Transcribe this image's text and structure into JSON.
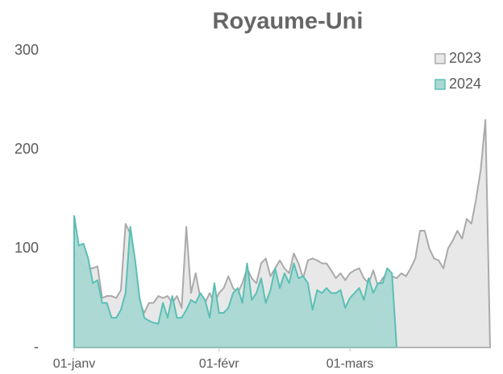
{
  "chart_data": {
    "type": "area",
    "title": "Royaume-Uni",
    "categories": [
      "01-janv",
      null,
      null,
      null,
      null,
      null,
      null,
      null,
      null,
      null,
      null,
      null,
      null,
      null,
      null,
      null,
      null,
      null,
      null,
      null,
      null,
      null,
      null,
      null,
      null,
      null,
      null,
      null,
      null,
      null,
      null,
      "01-févr",
      null,
      null,
      null,
      null,
      null,
      null,
      null,
      null,
      null,
      null,
      null,
      null,
      null,
      null,
      null,
      null,
      null,
      null,
      null,
      null,
      null,
      null,
      null,
      null,
      null,
      null,
      null,
      "01-mars",
      null,
      null,
      null,
      null,
      null,
      null,
      null,
      null,
      null,
      null,
      null,
      null,
      null,
      null,
      null,
      null,
      null,
      null,
      null,
      null,
      null,
      null,
      null,
      null,
      null,
      null,
      null,
      null,
      null,
      null
    ],
    "series": [
      {
        "name": "2023",
        "color": "#aaaaaa",
        "fill": "#e8e8e8",
        "values": [
          100,
          88,
          82,
          80,
          80,
          82,
          50,
          52,
          52,
          50,
          58,
          125,
          115,
          65,
          45,
          35,
          45,
          45,
          52,
          50,
          52,
          45,
          52,
          40,
          122,
          55,
          75,
          50,
          45,
          55,
          45,
          55,
          60,
          72,
          60,
          55,
          65,
          80,
          70,
          65,
          85,
          90,
          72,
          80,
          88,
          80,
          75,
          95,
          85,
          70,
          88,
          90,
          88,
          85,
          85,
          78,
          70,
          75,
          68,
          75,
          78,
          80,
          70,
          65,
          78,
          62,
          70,
          75,
          72,
          70,
          75,
          72,
          80,
          90,
          118,
          118,
          100,
          90,
          88,
          80,
          100,
          108,
          118,
          110,
          130,
          125,
          150,
          180,
          230,
          0
        ]
      },
      {
        "name": "2024",
        "color": "#5bbfb5",
        "fill": "#a9d8d3",
        "values": [
          133,
          103,
          105,
          90,
          65,
          68,
          45,
          45,
          30,
          30,
          38,
          55,
          122,
          90,
          50,
          30,
          27,
          25,
          24,
          45,
          30,
          52,
          30,
          30,
          38,
          48,
          45,
          55,
          48,
          30,
          65,
          35,
          35,
          40,
          55,
          60,
          45,
          85,
          48,
          55,
          70,
          45,
          58,
          80,
          60,
          75,
          65,
          85,
          70,
          72,
          65,
          38,
          58,
          55,
          60,
          55,
          55,
          58,
          40,
          50,
          55,
          60,
          48,
          70,
          55,
          65,
          65,
          80,
          75,
          0,
          null,
          null,
          null,
          null,
          null,
          null,
          null,
          null,
          null,
          null,
          null,
          null,
          null,
          null,
          null,
          null,
          null,
          null,
          null,
          null
        ]
      }
    ],
    "ylim": [
      0,
      300
    ],
    "yticks": [
      {
        "value": 0,
        "label": "-"
      },
      100,
      200,
      300
    ],
    "legend": "top-right"
  }
}
